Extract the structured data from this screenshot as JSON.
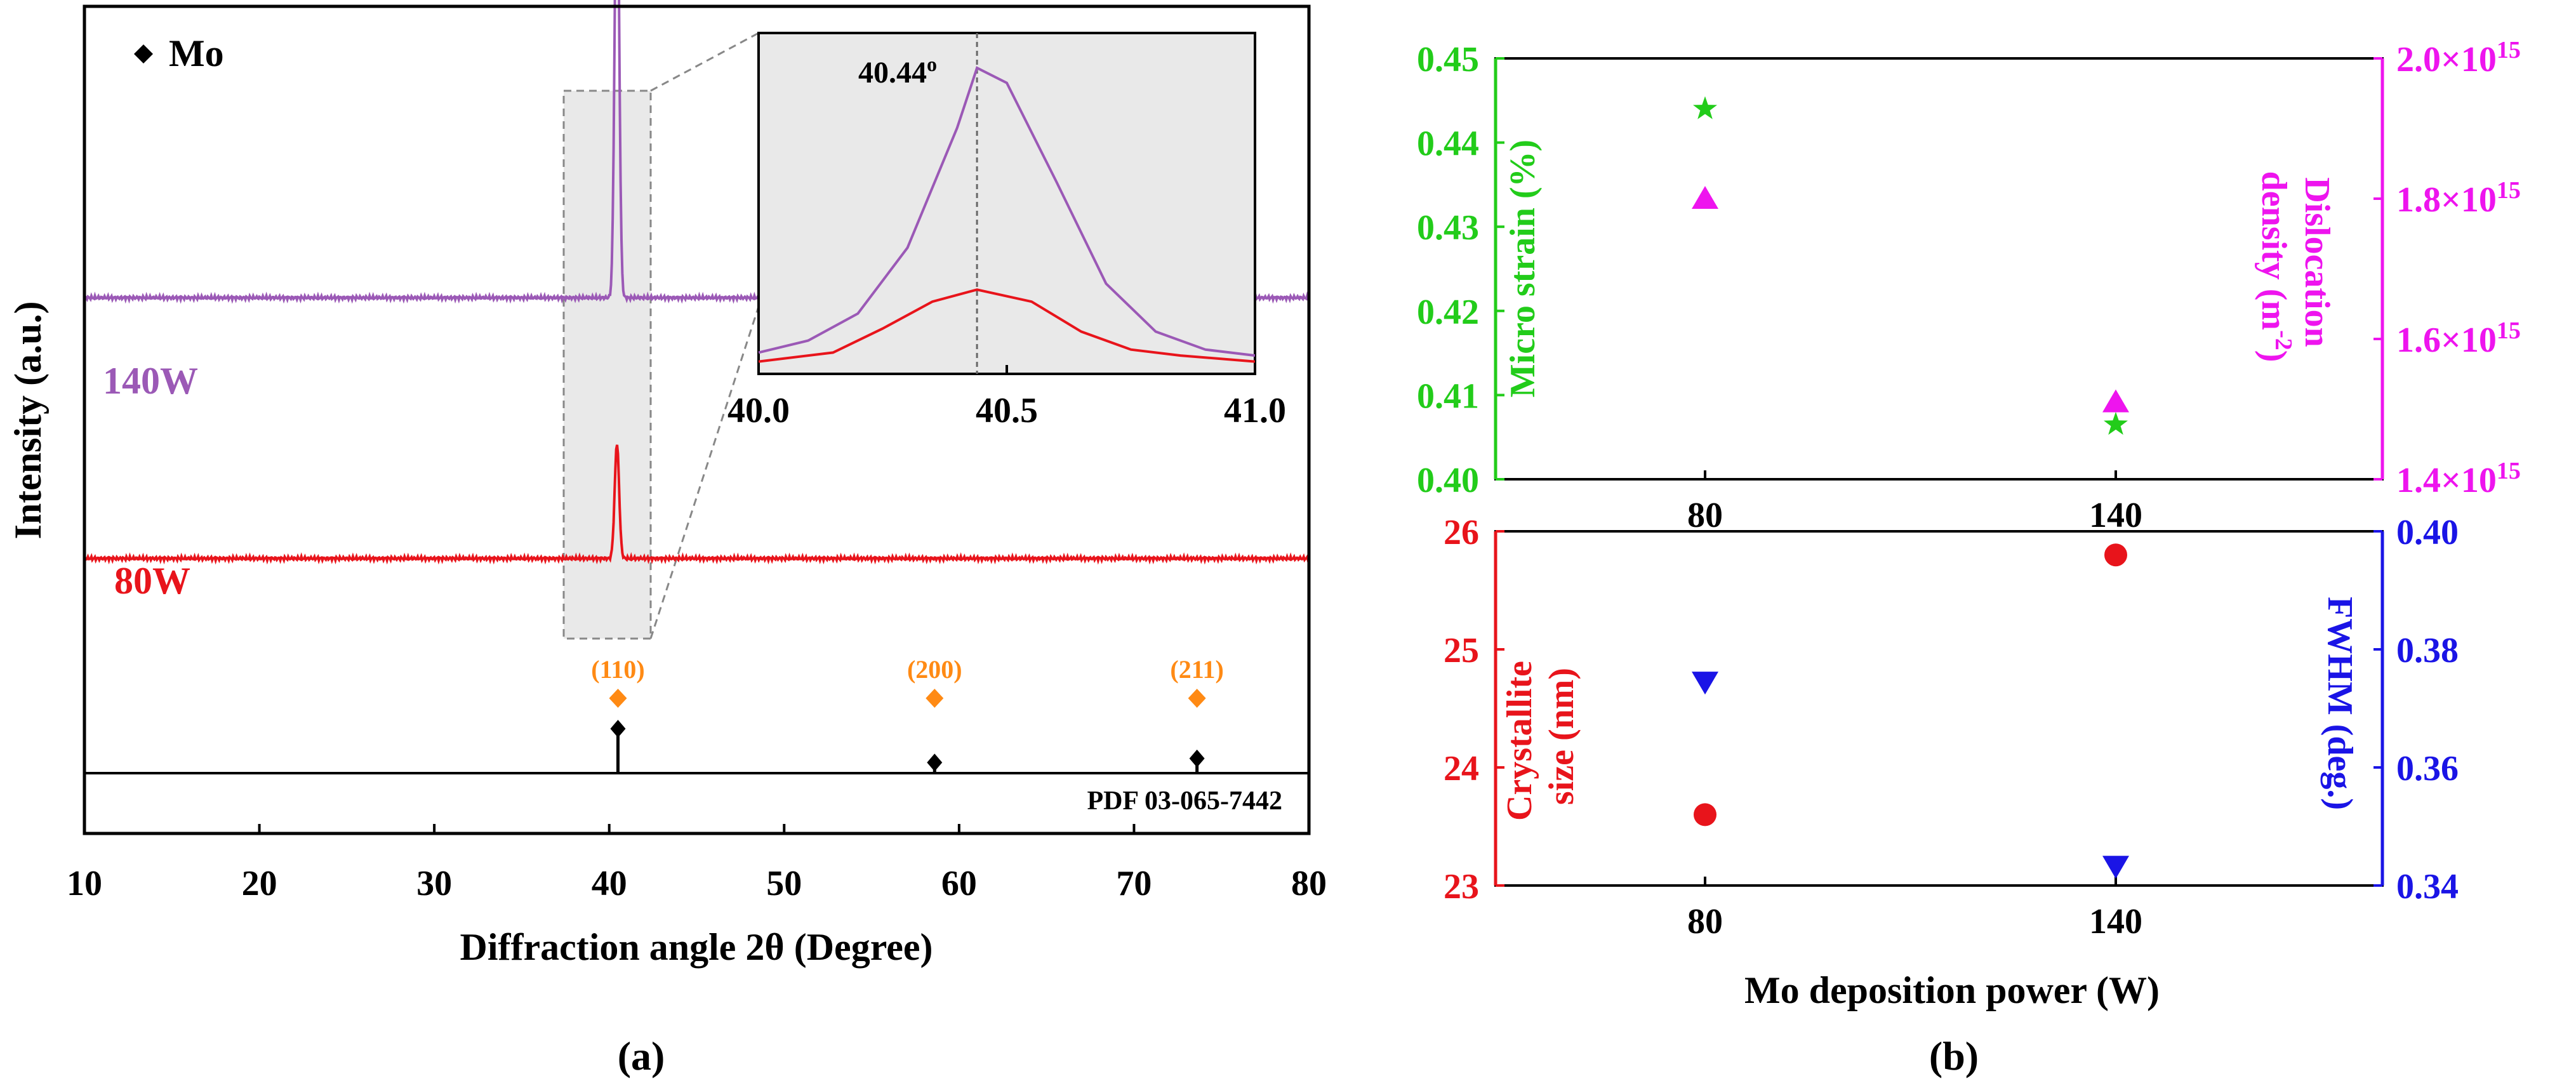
{
  "colors": {
    "black": "#000000",
    "purple": "#9b59b6",
    "red": "#e8141b",
    "orange": "#ff8a14",
    "green": "#22cc1a",
    "magenta": "#ee14ee",
    "blue": "#1a14e6",
    "inset_bg": "#e9e9e9"
  },
  "panel_a": {
    "label": "(a)",
    "xlabel": "Diffraction angle 2θ (Degree)",
    "ylabel": "Intensity (a.u.)",
    "legend_label": "Mo",
    "reference_label": "PDF 03-065-7442"
  },
  "panel_b": {
    "label": "(b)",
    "xlabel": "Mo deposition power (W)"
  },
  "chart_data": [
    {
      "type": "line",
      "name": "xrd-pattern",
      "xlim": [
        10,
        80
      ],
      "xticks": [
        10,
        20,
        30,
        40,
        50,
        60,
        70,
        80
      ],
      "series": [
        {
          "name": "140W",
          "color": "#9b59b6",
          "baseline": 0.62,
          "peaks": [
            {
              "x": 40.44,
              "height": 0.6,
              "width": 0.18
            }
          ]
        },
        {
          "name": "80W",
          "color": "#e8141b",
          "baseline": 0.28,
          "peaks": [
            {
              "x": 40.44,
              "height": 0.15,
              "width": 0.18
            }
          ]
        }
      ],
      "reference_peaks": [
        {
          "hkl": "(110)",
          "x": 40.5,
          "intensity": 1.0
        },
        {
          "hkl": "(200)",
          "x": 58.6,
          "intensity": 0.24
        },
        {
          "hkl": "(211)",
          "x": 73.6,
          "intensity": 0.33
        }
      ]
    },
    {
      "type": "line",
      "name": "xrd-inset",
      "xlim": [
        40.0,
        41.0
      ],
      "xticks": [
        "40.0",
        "40.5",
        "41.0"
      ],
      "annotation": "40.44",
      "annotation_sup": "o",
      "peak_x": 40.44,
      "series": [
        {
          "name": "140W",
          "color": "#9b59b6",
          "x": [
            40.0,
            40.1,
            40.2,
            40.3,
            40.4,
            40.44,
            40.5,
            40.6,
            40.7,
            40.8,
            40.9,
            41.0
          ],
          "y": [
            0.05,
            0.09,
            0.18,
            0.4,
            0.8,
            1.0,
            0.95,
            0.62,
            0.28,
            0.12,
            0.06,
            0.04
          ]
        },
        {
          "name": "80W",
          "color": "#e8141b",
          "x": [
            40.0,
            40.15,
            40.25,
            40.35,
            40.44,
            40.55,
            40.65,
            40.75,
            40.85,
            41.0
          ],
          "y": [
            0.02,
            0.05,
            0.13,
            0.22,
            0.26,
            0.22,
            0.12,
            0.06,
            0.04,
            0.02
          ]
        }
      ]
    },
    {
      "type": "scatter",
      "name": "strain-dislocation",
      "categories": [
        "80",
        "140"
      ],
      "left_axis": {
        "label": [
          "Micro strain (%)"
        ],
        "ylim": [
          0.4,
          0.45
        ],
        "ticks": [
          "0.40",
          "0.41",
          "0.42",
          "0.43",
          "0.44",
          "0.45"
        ]
      },
      "right_axis": {
        "label": [
          "Dislocation",
          "density (m",
          "-2",
          ")"
        ],
        "ylim": [
          1.4,
          2.0
        ],
        "ticks": [
          {
            "mant": "1.4",
            "exp": "15"
          },
          {
            "mant": "1.6",
            "exp": "15"
          },
          {
            "mant": "1.8",
            "exp": "15"
          },
          {
            "mant": "2.0",
            "exp": "15"
          }
        ]
      },
      "series": [
        {
          "axis": "left",
          "marker": "star",
          "color": "#22cc1a",
          "values": [
            0.444,
            0.4065
          ]
        },
        {
          "axis": "right",
          "marker": "triangle-up",
          "color": "#ee14ee",
          "values": [
            1.8,
            1.51
          ]
        }
      ]
    },
    {
      "type": "scatter",
      "name": "crystallite-fwhm",
      "categories": [
        "80",
        "140"
      ],
      "left_axis": {
        "label": [
          "Crystallite",
          "size (nm)"
        ],
        "ylim": [
          23,
          26
        ],
        "ticks": [
          "23",
          "24",
          "25",
          "26"
        ]
      },
      "right_axis": {
        "label": [
          "FWHM (deg.)"
        ],
        "ylim": [
          0.34,
          0.4
        ],
        "ticks": [
          "0.34",
          "0.36",
          "0.38",
          "0.40"
        ]
      },
      "series": [
        {
          "axis": "left",
          "marker": "circle",
          "color": "#e8141b",
          "values": [
            23.6,
            25.8
          ]
        },
        {
          "axis": "right",
          "marker": "triangle-down",
          "color": "#1a14e6",
          "values": [
            0.3745,
            0.3433
          ]
        }
      ]
    }
  ]
}
